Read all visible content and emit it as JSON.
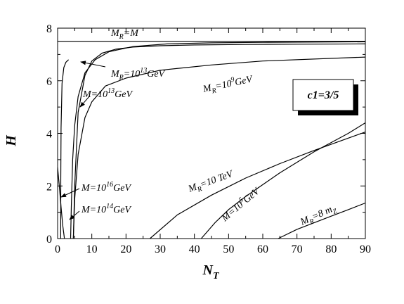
{
  "chart_data": {
    "type": "line",
    "xlabel": "N",
    "xlabel_sub": "T",
    "ylabel": "H",
    "xlim": [
      0,
      90
    ],
    "ylim": [
      0,
      8
    ],
    "x_ticks": [
      0,
      10,
      20,
      30,
      40,
      50,
      60,
      70,
      80,
      90
    ],
    "y_ticks": [
      0,
      2,
      4,
      6,
      8
    ],
    "grid": false,
    "box_text": "c1=3/5",
    "series": [
      {
        "x": [
          0,
          90
        ],
        "y": [
          7.5,
          7.5
        ]
      },
      {
        "x": [
          4.6,
          5,
          6,
          8,
          10,
          13,
          17,
          22,
          30,
          40,
          55,
          70,
          90
        ],
        "y": [
          0,
          2.0,
          4.8,
          6.2,
          6.75,
          7.05,
          7.2,
          7.28,
          7.33,
          7.36,
          7.38,
          7.39,
          7.4
        ]
      },
      {
        "x": [
          4.6,
          5,
          6,
          8,
          10,
          14,
          20,
          30,
          45,
          60,
          90
        ],
        "y": [
          0,
          1.5,
          3.2,
          4.6,
          5.2,
          5.8,
          6.1,
          6.4,
          6.6,
          6.75,
          6.9
        ]
      },
      {
        "x": [
          0.9,
          0.92,
          1,
          1.3,
          1.8,
          2.4,
          3.2
        ],
        "y": [
          0,
          2.2,
          4.2,
          5.9,
          6.5,
          6.7,
          6.8
        ]
      },
      {
        "x": [
          0,
          0.5,
          1,
          1.5,
          2.0
        ],
        "y": [
          2.7,
          2.0,
          1.2,
          0.5,
          0
        ]
      },
      {
        "x": [
          3.8,
          4.0,
          4.4,
          5,
          6,
          8,
          11,
          15,
          22,
          32,
          45,
          60,
          75,
          90
        ],
        "y": [
          0,
          1.2,
          3.0,
          4.3,
          5.4,
          6.3,
          6.8,
          7.1,
          7.3,
          7.4,
          7.44,
          7.46,
          7.47,
          7.48
        ]
      },
      {
        "x": [
          27,
          35,
          45,
          55,
          65,
          75,
          90
        ],
        "y": [
          0,
          0.9,
          1.65,
          2.3,
          2.85,
          3.35,
          4.05
        ]
      },
      {
        "x": [
          42,
          46,
          50,
          55,
          60,
          65,
          70,
          75,
          80,
          85,
          90
        ],
        "y": [
          0,
          0.6,
          1.1,
          1.6,
          2.05,
          2.5,
          2.9,
          3.3,
          3.65,
          4.0,
          4.4
        ]
      },
      {
        "x": [
          64.5,
          70,
          75,
          80,
          85,
          90
        ],
        "y": [
          0,
          0.35,
          0.6,
          0.85,
          1.1,
          1.35
        ]
      }
    ],
    "annotations": [
      {
        "main": "M",
        "sub": "R",
        "rest": "=M"
      },
      {
        "main": "M",
        "sub": "R",
        "rest": "=10",
        "sup": "13",
        "tail": "GeV"
      },
      {
        "main": "M",
        "sub": "",
        "rest": "=10",
        "sup": "13",
        "tail": "GeV"
      },
      {
        "main": "M",
        "sub": "R",
        "rest": "=10",
        "sup": "9",
        "tail": "GeV"
      },
      {
        "main": "M",
        "sub": "",
        "rest": "=10",
        "sup": "16",
        "tail": "GeV"
      },
      {
        "main": "M",
        "sub": "",
        "rest": "=10",
        "sup": "14",
        "tail": "GeV"
      },
      {
        "main": "M",
        "sub": "R",
        "rest": "=10 TeV"
      },
      {
        "main": "M",
        "sub": "",
        "rest": "=10",
        "sup": "5",
        "tail": "GeV"
      },
      {
        "main": "M",
        "sub": "R",
        "rest": "=8 m",
        "sub2": "Z"
      }
    ]
  }
}
